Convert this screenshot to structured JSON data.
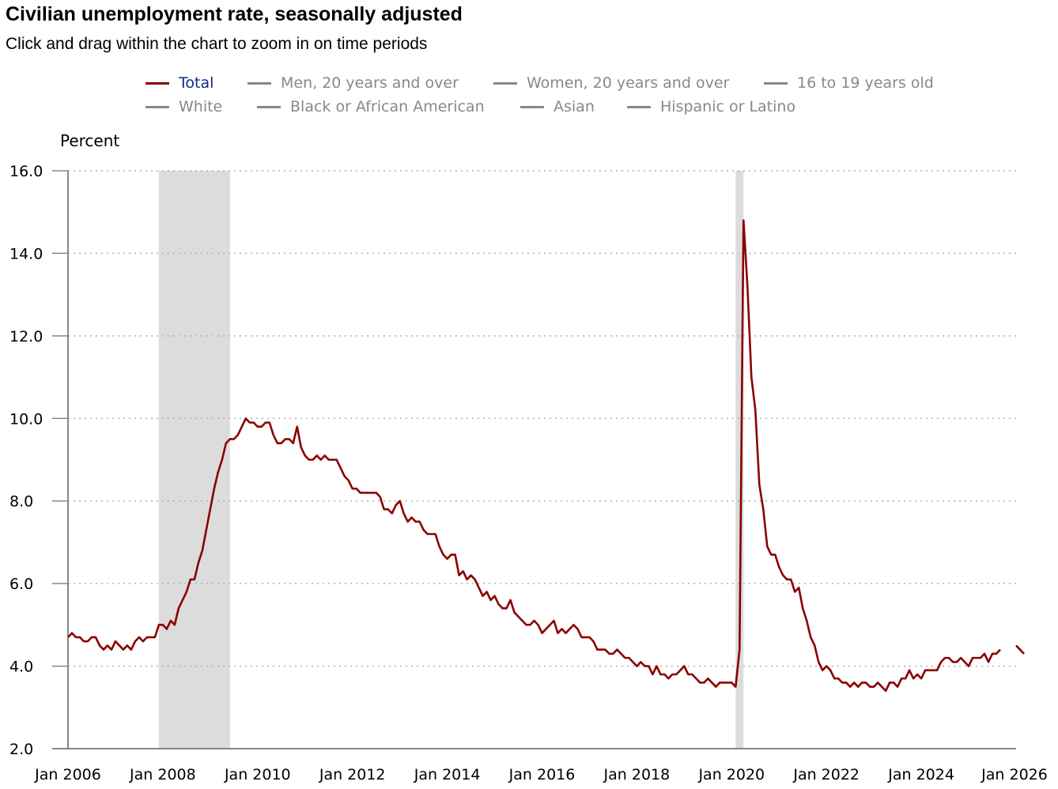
{
  "title": "Civilian unemployment rate, seasonally adjusted",
  "subtitle": "Click and drag within the chart to zoom in on time periods",
  "legend": [
    {
      "label": "Total",
      "active": true
    },
    {
      "label": "Men, 20 years and over",
      "active": false
    },
    {
      "label": "Women, 20 years and over",
      "active": false
    },
    {
      "label": "16 to 19 years old",
      "active": false
    },
    {
      "label": "White",
      "active": false
    },
    {
      "label": "Black or African American",
      "active": false
    },
    {
      "label": "Asian",
      "active": false
    },
    {
      "label": "Hispanic or Latino",
      "active": false
    }
  ],
  "colors": {
    "series": "#8b0000",
    "legend_active_text": "#0b2a85",
    "legend_inactive": "#888888",
    "recession": "#dcdcdc",
    "grid": "#b0b0b0"
  },
  "chart_data": {
    "type": "line",
    "title": "Civilian unemployment rate, seasonally adjusted",
    "ylabel": "Percent",
    "xlabel": "",
    "ylim": [
      2.0,
      16.0
    ],
    "yticks": [
      "2.0",
      "4.0",
      "6.0",
      "8.0",
      "10.0",
      "12.0",
      "14.0",
      "16.0"
    ],
    "xticks": [
      "Jan 2006",
      "Jan 2008",
      "Jan 2010",
      "Jan 2012",
      "Jan 2014",
      "Jan 2016",
      "Jan 2018",
      "Jan 2020",
      "Jan 2022",
      "Jan 2024",
      "Jan 2026"
    ],
    "x_start": "Jan 2006",
    "grid": "horizontal dotted",
    "recessions": [
      {
        "start": "Dec 2007",
        "end": "Jun 2009"
      },
      {
        "start": "Feb 2020",
        "end": "Apr 2020"
      }
    ],
    "series": [
      {
        "name": "Total",
        "start": "Jan 2006",
        "values": [
          4.7,
          4.8,
          4.7,
          4.7,
          4.6,
          4.6,
          4.7,
          4.7,
          4.5,
          4.4,
          4.5,
          4.4,
          4.6,
          4.5,
          4.4,
          4.5,
          4.4,
          4.6,
          4.7,
          4.6,
          4.7,
          4.7,
          4.7,
          5.0,
          5.0,
          4.9,
          5.1,
          5.0,
          5.4,
          5.6,
          5.8,
          6.1,
          6.1,
          6.5,
          6.8,
          7.3,
          7.8,
          8.3,
          8.7,
          9.0,
          9.4,
          9.5,
          9.5,
          9.6,
          9.8,
          10.0,
          9.9,
          9.9,
          9.8,
          9.8,
          9.9,
          9.9,
          9.6,
          9.4,
          9.4,
          9.5,
          9.5,
          9.4,
          9.8,
          9.3,
          9.1,
          9.0,
          9.0,
          9.1,
          9.0,
          9.1,
          9.0,
          9.0,
          9.0,
          8.8,
          8.6,
          8.5,
          8.3,
          8.3,
          8.2,
          8.2,
          8.2,
          8.2,
          8.2,
          8.1,
          7.8,
          7.8,
          7.7,
          7.9,
          8.0,
          7.7,
          7.5,
          7.6,
          7.5,
          7.5,
          7.3,
          7.2,
          7.2,
          7.2,
          6.9,
          6.7,
          6.6,
          6.7,
          6.7,
          6.2,
          6.3,
          6.1,
          6.2,
          6.1,
          5.9,
          5.7,
          5.8,
          5.6,
          5.7,
          5.5,
          5.4,
          5.4,
          5.6,
          5.3,
          5.2,
          5.1,
          5.0,
          5.0,
          5.1,
          5.0,
          4.8,
          4.9,
          5.0,
          5.1,
          4.8,
          4.9,
          4.8,
          4.9,
          5.0,
          4.9,
          4.7,
          4.7,
          4.7,
          4.6,
          4.4,
          4.4,
          4.4,
          4.3,
          4.3,
          4.4,
          4.3,
          4.2,
          4.2,
          4.1,
          4.0,
          4.1,
          4.0,
          4.0,
          3.8,
          4.0,
          3.8,
          3.8,
          3.7,
          3.8,
          3.8,
          3.9,
          4.0,
          3.8,
          3.8,
          3.7,
          3.6,
          3.6,
          3.7,
          3.6,
          3.5,
          3.6,
          3.6,
          3.6,
          3.6,
          3.5,
          4.4,
          14.8,
          13.2,
          11.0,
          10.2,
          8.4,
          7.8,
          6.9,
          6.7,
          6.7,
          6.4,
          6.2,
          6.1,
          6.1,
          5.8,
          5.9,
          5.4,
          5.1,
          4.7,
          4.5,
          4.1,
          3.9,
          4.0,
          3.9,
          3.7,
          3.7,
          3.6,
          3.6,
          3.5,
          3.6,
          3.5,
          3.6,
          3.6,
          3.5,
          3.5,
          3.6,
          3.5,
          3.4,
          3.6,
          3.6,
          3.5,
          3.7,
          3.7,
          3.9,
          3.7,
          3.8,
          3.7,
          3.9,
          3.9,
          3.9,
          3.9,
          4.1,
          4.2,
          4.2,
          4.1,
          4.1,
          4.2,
          4.1,
          4.0,
          4.2,
          4.2,
          4.2,
          4.3,
          4.1,
          4.3,
          4.3,
          4.4,
          null,
          null,
          null,
          4.5,
          4.4,
          4.3
        ]
      }
    ]
  }
}
